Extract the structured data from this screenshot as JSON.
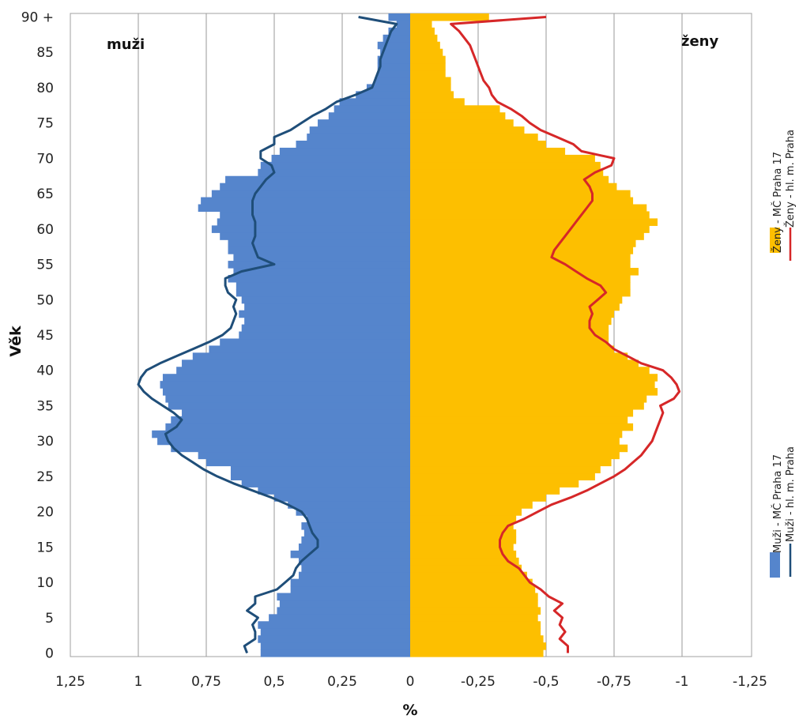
{
  "chart_data": {
    "type": "bar",
    "orientation": "horizontal",
    "xlabel": "%",
    "ylabel": "Věk",
    "xlim": [
      1.25,
      -1.25
    ],
    "ylim": [
      0,
      90
    ],
    "x_ticks": [
      "1,25",
      "1",
      "0,75",
      "0,5",
      "0,25",
      "0",
      "-0,25",
      "-0,5",
      "-0,75",
      "-1",
      "-1,25"
    ],
    "y_ticks": [
      "0",
      "5",
      "10",
      "15",
      "20",
      "25",
      "30",
      "35",
      "40",
      "45",
      "50",
      "55",
      "60",
      "65",
      "70",
      "75",
      "80",
      "85",
      "90 +"
    ],
    "annotations": {
      "left": "muži",
      "right": "ženy"
    },
    "grid": "vertical",
    "legend_position": "right, rotated",
    "series": [
      {
        "name": "Muži - MČ Praha 17",
        "kind": "bar",
        "color": "#5585cc",
        "ages": [
          0,
          1,
          2,
          3,
          4,
          5,
          6,
          7,
          8,
          9,
          10,
          11,
          12,
          13,
          14,
          15,
          16,
          17,
          18,
          19,
          20,
          21,
          22,
          23,
          24,
          25,
          26,
          27,
          28,
          29,
          30,
          31,
          32,
          33,
          34,
          35,
          36,
          37,
          38,
          39,
          40,
          41,
          42,
          43,
          44,
          45,
          46,
          47,
          48,
          49,
          50,
          51,
          52,
          53,
          54,
          55,
          56,
          57,
          58,
          59,
          60,
          61,
          62,
          63,
          64,
          65,
          66,
          67,
          68,
          69,
          70,
          71,
          72,
          73,
          74,
          75,
          76,
          77,
          78,
          79,
          80,
          81,
          82,
          83,
          84,
          85,
          86,
          87,
          88,
          89,
          90
        ],
        "values": [
          0.55,
          0.55,
          0.56,
          0.55,
          0.56,
          0.52,
          0.49,
          0.48,
          0.49,
          0.44,
          0.44,
          0.41,
          0.4,
          0.41,
          0.44,
          0.41,
          0.4,
          0.39,
          0.4,
          0.38,
          0.42,
          0.45,
          0.5,
          0.56,
          0.62,
          0.66,
          0.66,
          0.75,
          0.78,
          0.88,
          0.93,
          0.95,
          0.9,
          0.88,
          0.84,
          0.89,
          0.9,
          0.91,
          0.92,
          0.91,
          0.86,
          0.84,
          0.8,
          0.74,
          0.7,
          0.63,
          0.62,
          0.61,
          0.63,
          0.61,
          0.62,
          0.64,
          0.64,
          0.67,
          0.65,
          0.67,
          0.65,
          0.67,
          0.67,
          0.7,
          0.73,
          0.71,
          0.7,
          0.78,
          0.77,
          0.73,
          0.7,
          0.68,
          0.56,
          0.55,
          0.51,
          0.48,
          0.42,
          0.38,
          0.37,
          0.34,
          0.3,
          0.28,
          0.26,
          0.2,
          0.16,
          0.13,
          0.12,
          0.12,
          0.12,
          0.11,
          0.12,
          0.1,
          0.08,
          0.05,
          0.08
        ]
      },
      {
        "name": "Muži - hl. m. Praha",
        "kind": "line",
        "color": "#1f4e79",
        "ages": [
          0,
          1,
          2,
          3,
          4,
          5,
          6,
          7,
          8,
          9,
          10,
          11,
          12,
          13,
          14,
          15,
          16,
          17,
          18,
          19,
          20,
          21,
          22,
          23,
          24,
          25,
          26,
          27,
          28,
          29,
          30,
          31,
          32,
          33,
          34,
          35,
          36,
          37,
          38,
          39,
          40,
          41,
          42,
          43,
          44,
          45,
          46,
          47,
          48,
          49,
          50,
          51,
          52,
          53,
          54,
          55,
          56,
          57,
          58,
          59,
          60,
          61,
          62,
          63,
          64,
          65,
          66,
          67,
          68,
          69,
          70,
          71,
          72,
          73,
          74,
          75,
          76,
          77,
          78,
          79,
          80,
          81,
          82,
          83,
          84,
          85,
          86,
          87,
          88,
          89,
          90
        ],
        "values": [
          0.6,
          0.61,
          0.57,
          0.57,
          0.58,
          0.56,
          0.6,
          0.57,
          0.57,
          0.49,
          0.46,
          0.43,
          0.42,
          0.4,
          0.37,
          0.34,
          0.34,
          0.36,
          0.37,
          0.38,
          0.4,
          0.45,
          0.51,
          0.58,
          0.65,
          0.71,
          0.76,
          0.8,
          0.84,
          0.87,
          0.89,
          0.9,
          0.86,
          0.84,
          0.87,
          0.91,
          0.95,
          0.98,
          1.0,
          0.99,
          0.97,
          0.92,
          0.86,
          0.8,
          0.74,
          0.69,
          0.66,
          0.65,
          0.64,
          0.65,
          0.64,
          0.67,
          0.68,
          0.68,
          0.62,
          0.5,
          0.56,
          0.57,
          0.58,
          0.57,
          0.57,
          0.57,
          0.58,
          0.58,
          0.58,
          0.57,
          0.55,
          0.53,
          0.5,
          0.51,
          0.55,
          0.55,
          0.5,
          0.5,
          0.44,
          0.4,
          0.36,
          0.31,
          0.27,
          0.2,
          0.14,
          0.13,
          0.12,
          0.11,
          0.11,
          0.1,
          0.09,
          0.08,
          0.07,
          0.05,
          0.19
        ]
      },
      {
        "name": "Ženy - MČ Praha 17",
        "kind": "bar",
        "color": "#fdbf00",
        "ages": [
          0,
          1,
          2,
          3,
          4,
          5,
          6,
          7,
          8,
          9,
          10,
          11,
          12,
          13,
          14,
          15,
          16,
          17,
          18,
          19,
          20,
          21,
          22,
          23,
          24,
          25,
          26,
          27,
          28,
          29,
          30,
          31,
          32,
          33,
          34,
          35,
          36,
          37,
          38,
          39,
          40,
          41,
          42,
          43,
          44,
          45,
          46,
          47,
          48,
          49,
          50,
          51,
          52,
          53,
          54,
          55,
          56,
          57,
          58,
          59,
          60,
          61,
          62,
          63,
          64,
          65,
          66,
          67,
          68,
          69,
          70,
          71,
          72,
          73,
          74,
          75,
          76,
          77,
          78,
          79,
          80,
          81,
          82,
          83,
          84,
          85,
          86,
          87,
          88,
          89,
          90
        ],
        "values": [
          0.49,
          0.5,
          0.49,
          0.48,
          0.48,
          0.47,
          0.48,
          0.47,
          0.47,
          0.46,
          0.45,
          0.43,
          0.41,
          0.4,
          0.39,
          0.38,
          0.39,
          0.39,
          0.38,
          0.39,
          0.41,
          0.45,
          0.5,
          0.55,
          0.62,
          0.68,
          0.7,
          0.74,
          0.77,
          0.8,
          0.77,
          0.78,
          0.82,
          0.8,
          0.82,
          0.86,
          0.87,
          0.91,
          0.9,
          0.91,
          0.88,
          0.84,
          0.8,
          0.75,
          0.73,
          0.73,
          0.73,
          0.74,
          0.75,
          0.77,
          0.78,
          0.81,
          0.81,
          0.81,
          0.84,
          0.81,
          0.81,
          0.82,
          0.83,
          0.86,
          0.88,
          0.91,
          0.88,
          0.87,
          0.82,
          0.81,
          0.76,
          0.73,
          0.71,
          0.7,
          0.68,
          0.57,
          0.5,
          0.47,
          0.42,
          0.38,
          0.35,
          0.33,
          0.2,
          0.16,
          0.15,
          0.15,
          0.13,
          0.13,
          0.13,
          0.12,
          0.11,
          0.1,
          0.09,
          0.08,
          0.29
        ]
      },
      {
        "name": "Ženy - hl. m. Praha",
        "kind": "line",
        "color": "#d62728",
        "ages": [
          0,
          1,
          2,
          3,
          4,
          5,
          6,
          7,
          8,
          9,
          10,
          11,
          12,
          13,
          14,
          15,
          16,
          17,
          18,
          19,
          20,
          21,
          22,
          23,
          24,
          25,
          26,
          27,
          28,
          29,
          30,
          31,
          32,
          33,
          34,
          35,
          36,
          37,
          38,
          39,
          40,
          41,
          42,
          43,
          44,
          45,
          46,
          47,
          48,
          49,
          50,
          51,
          52,
          53,
          54,
          55,
          56,
          57,
          58,
          59,
          60,
          61,
          62,
          63,
          64,
          65,
          66,
          67,
          68,
          69,
          70,
          71,
          72,
          73,
          74,
          75,
          76,
          77,
          78,
          79,
          80,
          81,
          82,
          83,
          84,
          85,
          86,
          87,
          88,
          89,
          90
        ],
        "values": [
          0.58,
          0.58,
          0.55,
          0.57,
          0.55,
          0.56,
          0.53,
          0.56,
          0.51,
          0.48,
          0.44,
          0.42,
          0.4,
          0.36,
          0.34,
          0.33,
          0.33,
          0.34,
          0.36,
          0.42,
          0.47,
          0.52,
          0.59,
          0.65,
          0.7,
          0.75,
          0.79,
          0.82,
          0.85,
          0.87,
          0.89,
          0.9,
          0.91,
          0.92,
          0.93,
          0.92,
          0.97,
          0.99,
          0.98,
          0.96,
          0.93,
          0.85,
          0.8,
          0.75,
          0.72,
          0.68,
          0.66,
          0.66,
          0.67,
          0.66,
          0.69,
          0.72,
          0.7,
          0.65,
          0.61,
          0.57,
          0.52,
          0.53,
          0.55,
          0.57,
          0.59,
          0.61,
          0.63,
          0.65,
          0.67,
          0.67,
          0.66,
          0.64,
          0.68,
          0.74,
          0.75,
          0.63,
          0.6,
          0.54,
          0.48,
          0.44,
          0.41,
          0.37,
          0.32,
          0.3,
          0.29,
          0.27,
          0.26,
          0.25,
          0.24,
          0.23,
          0.22,
          0.2,
          0.18,
          0.15,
          0.5
        ]
      }
    ]
  }
}
